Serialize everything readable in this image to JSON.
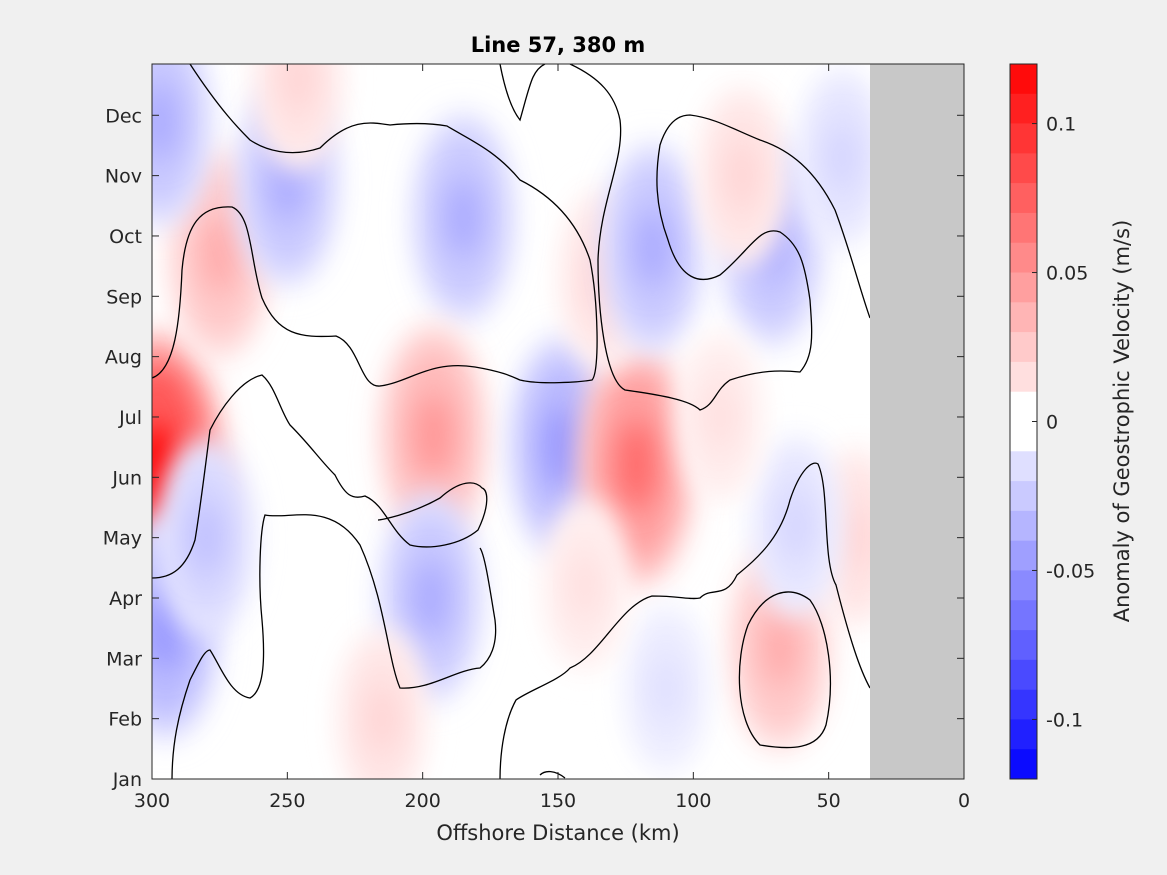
{
  "chart_data": {
    "type": "heatmap",
    "title": "Line 57, 380 m",
    "xlabel": "Offshore Distance (km)",
    "ylabel": "",
    "xlim": [
      300,
      0
    ],
    "x_reversed": true,
    "x_ticks": [
      300,
      250,
      200,
      150,
      100,
      50,
      0
    ],
    "y_ticks": [
      "Jan",
      "Feb",
      "Mar",
      "Apr",
      "May",
      "Jun",
      "Jul",
      "Aug",
      "Sep",
      "Oct",
      "Nov",
      "Dec"
    ],
    "no_data_region_km": [
      0,
      35
    ],
    "zero_contour": true,
    "colorbar": {
      "label": "Anomaly of Geostrophic Velocity (m/s)",
      "clim": [
        -0.12,
        0.12
      ],
      "levels": 24,
      "ticks": [
        0.1,
        0.05,
        0,
        -0.05,
        -0.1
      ],
      "tick_labels": [
        "0.1",
        "0.05",
        "0",
        "-0.05",
        "-0.1"
      ],
      "colormap": "blue-white-red",
      "neg_color": "#0000ff",
      "pos_color": "#ff0000"
    },
    "anomalies": [
      {
        "x_km": 298,
        "month": 5.0,
        "value": 0.12
      },
      {
        "x_km": 275,
        "month": 8.7,
        "value": 0.04
      },
      {
        "x_km": 295,
        "month": 2.5,
        "value": -0.05
      },
      {
        "x_km": 297,
        "month": 10.9,
        "value": -0.04
      },
      {
        "x_km": 280,
        "month": 4.0,
        "value": -0.03
      },
      {
        "x_km": 250,
        "month": 9.9,
        "value": -0.04
      },
      {
        "x_km": 246,
        "month": 11.6,
        "value": 0.02
      },
      {
        "x_km": 185,
        "month": 9.3,
        "value": -0.04
      },
      {
        "x_km": 196,
        "month": 5.7,
        "value": 0.05
      },
      {
        "x_km": 197,
        "month": 3.0,
        "value": -0.04
      },
      {
        "x_km": 148,
        "month": 5.5,
        "value": -0.05
      },
      {
        "x_km": 121,
        "month": 5.2,
        "value": 0.07
      },
      {
        "x_km": 133,
        "month": 8.3,
        "value": 0.02
      },
      {
        "x_km": 115,
        "month": 8.8,
        "value": -0.04
      },
      {
        "x_km": 71,
        "month": 8.9,
        "value": -0.04
      },
      {
        "x_km": 68,
        "month": 2.2,
        "value": 0.04
      },
      {
        "x_km": 82,
        "month": 10.0,
        "value": 0.02
      },
      {
        "x_km": 45,
        "month": 10.3,
        "value": -0.02
      },
      {
        "x_km": 40,
        "month": 4.0,
        "value": 0.02
      },
      {
        "x_km": 62,
        "month": 4.2,
        "value": -0.02
      },
      {
        "x_km": 215,
        "month": 1.0,
        "value": 0.02
      },
      {
        "x_km": 110,
        "month": 1.5,
        "value": -0.015
      },
      {
        "x_km": 140,
        "month": 3.2,
        "value": 0.015
      },
      {
        "x_km": 90,
        "month": 6.0,
        "value": 0.015
      }
    ]
  }
}
